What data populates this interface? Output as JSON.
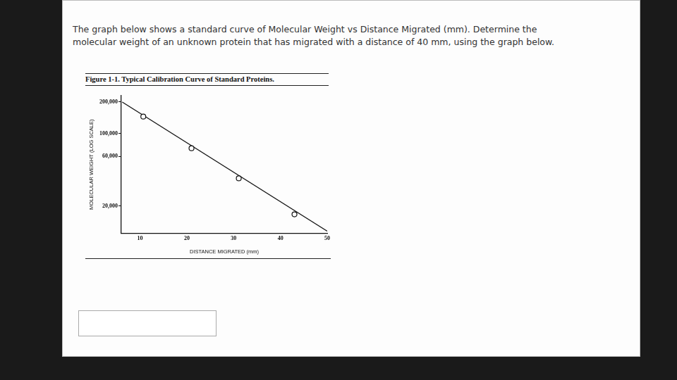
{
  "question": [
    "The graph below shows a standard curve of Molecular Weight vs Distance Migrated (mm). Determine the",
    "molecular weight of an unknown protein that has migrated with a distance of 40 mm, using the graph below."
  ],
  "chart_data": {
    "type": "scatter",
    "title": "Figure 1-1. Typical Calibration Curve of Standard Proteins.",
    "x_label": "DISTANCE MIGRATED (mm)",
    "y_label": "MOLECULAR WEIGHT (LOG SCALE)",
    "log": "y",
    "grid": false,
    "xlim": [
      6,
      50
    ],
    "xticks": [
      10,
      20,
      30,
      40,
      50
    ],
    "ylim": [
      11000,
      230000
    ],
    "yticks": [
      {
        "value": 20000,
        "label": "20,000"
      },
      {
        "value": 60000,
        "label": "60,000"
      },
      {
        "value": 100000,
        "label": "100,000"
      },
      {
        "value": 200000,
        "label": "200,000"
      }
    ],
    "series": [
      {
        "type": "line",
        "color": "#111111",
        "marker": "none",
        "line_style": "solid",
        "x": [
          6.2,
          50
        ],
        "values": [
          200000,
          11500
        ]
      },
      {
        "type": "scatter",
        "color": "#111111",
        "marker": "circle",
        "x": [
          10.7,
          21.0,
          31.1,
          43.0
        ],
        "values": [
          145000,
          72000,
          37000,
          16700
        ]
      }
    ]
  }
}
